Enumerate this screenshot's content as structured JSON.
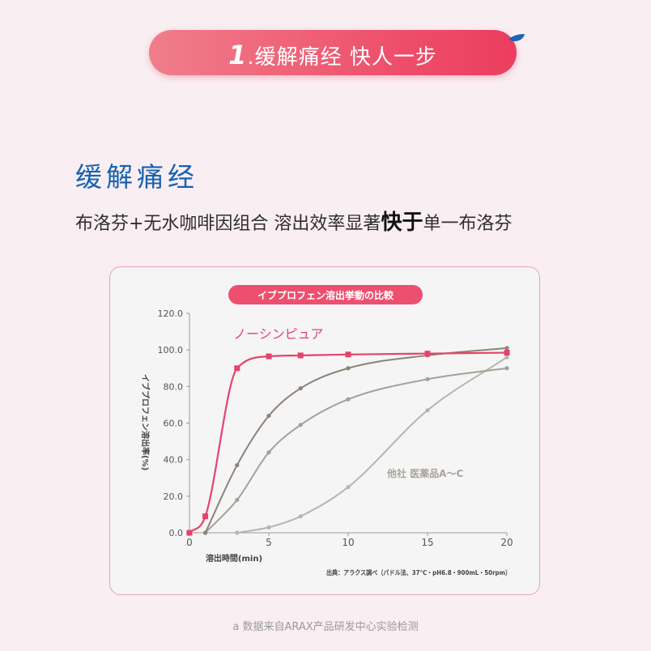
{
  "banner": {
    "number": "1",
    "title": ".缓解痛经 快人一步"
  },
  "section": {
    "title": "缓解痛经",
    "subtitle_pre": "布洛芬+无水咖啡因组合 溶出效率显著",
    "subtitle_emph": "快于",
    "subtitle_post": "单一布洛芬"
  },
  "chart_data": {
    "type": "line",
    "title": "イブプロフェン溶出挙動の比較",
    "xlabel": "溶出時間(min)",
    "ylabel": "イブプロフェン溶出率(%)",
    "xlim": [
      0,
      20
    ],
    "ylim": [
      0,
      120
    ],
    "x_ticks": [
      "0",
      "5",
      "10",
      "15",
      "20"
    ],
    "y_ticks": [
      "0.0",
      "20.0",
      "40.0",
      "60.0",
      "80.0",
      "100.0",
      "120.0"
    ],
    "grid": false,
    "source": "出典：アラクス調べ（パドル法、37℃・pH6.8・900mL・50rpm）",
    "group_label": "他社 医薬品A～C",
    "series": [
      {
        "name": "ノーシンピュア",
        "color": "#e5436a",
        "marker": "square",
        "x": [
          0,
          1,
          3,
          5,
          7,
          10,
          15,
          20
        ],
        "y": [
          0,
          9,
          90,
          96.5,
          97,
          97.5,
          98,
          98.5
        ]
      },
      {
        "name": "",
        "color": "#8d8276",
        "marker": "circle",
        "x": [
          1,
          3,
          5,
          7,
          10,
          15,
          20
        ],
        "y": [
          0,
          37,
          64,
          79,
          90,
          97,
          101
        ]
      },
      {
        "name": "",
        "color": "#a8a097",
        "marker": "circle",
        "x": [
          1,
          3,
          5,
          7,
          10,
          15,
          20
        ],
        "y": [
          0,
          18,
          44,
          59,
          73,
          84,
          90
        ]
      },
      {
        "name": "",
        "color": "#bab4ad",
        "marker": "circle",
        "x": [
          3,
          5,
          7,
          10,
          15,
          20
        ],
        "y": [
          0,
          3,
          9,
          25,
          67,
          96
        ]
      }
    ]
  },
  "footer": {
    "note": "a 数据来自ARAX产品研发中心实验检测"
  }
}
